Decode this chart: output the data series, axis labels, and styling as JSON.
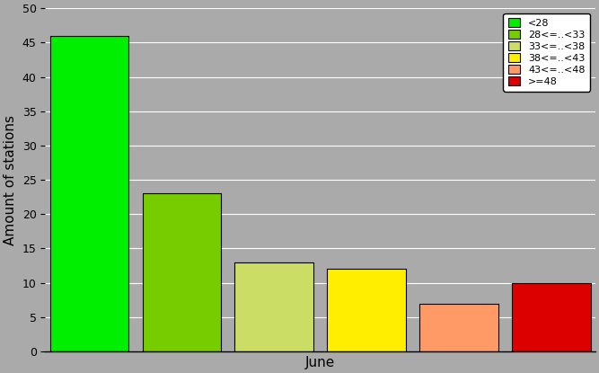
{
  "bars": [
    {
      "label": "<28",
      "value": 46,
      "color": "#00EE00"
    },
    {
      "label": "28<=..<33",
      "value": 23,
      "color": "#77CC00"
    },
    {
      "label": "33<=..<38",
      "value": 13,
      "color": "#CCDD66"
    },
    {
      "label": "38<=..<43",
      "value": 12,
      "color": "#FFEE00"
    },
    {
      "label": "43<=..<48",
      "value": 7,
      "color": "#FF9966"
    },
    {
      "label": ">=48",
      "value": 10,
      "color": "#DD0000"
    }
  ],
  "ylabel": "Amount of stations",
  "xlabel": "June",
  "ylim": [
    0,
    50
  ],
  "yticks": [
    0,
    5,
    10,
    15,
    20,
    25,
    30,
    35,
    40,
    45,
    50
  ],
  "background_color": "#AAAAAA",
  "bar_width": 0.85,
  "legend_fontsize": 8,
  "ylabel_fontsize": 11,
  "xlabel_fontsize": 11,
  "tick_fontsize": 9
}
